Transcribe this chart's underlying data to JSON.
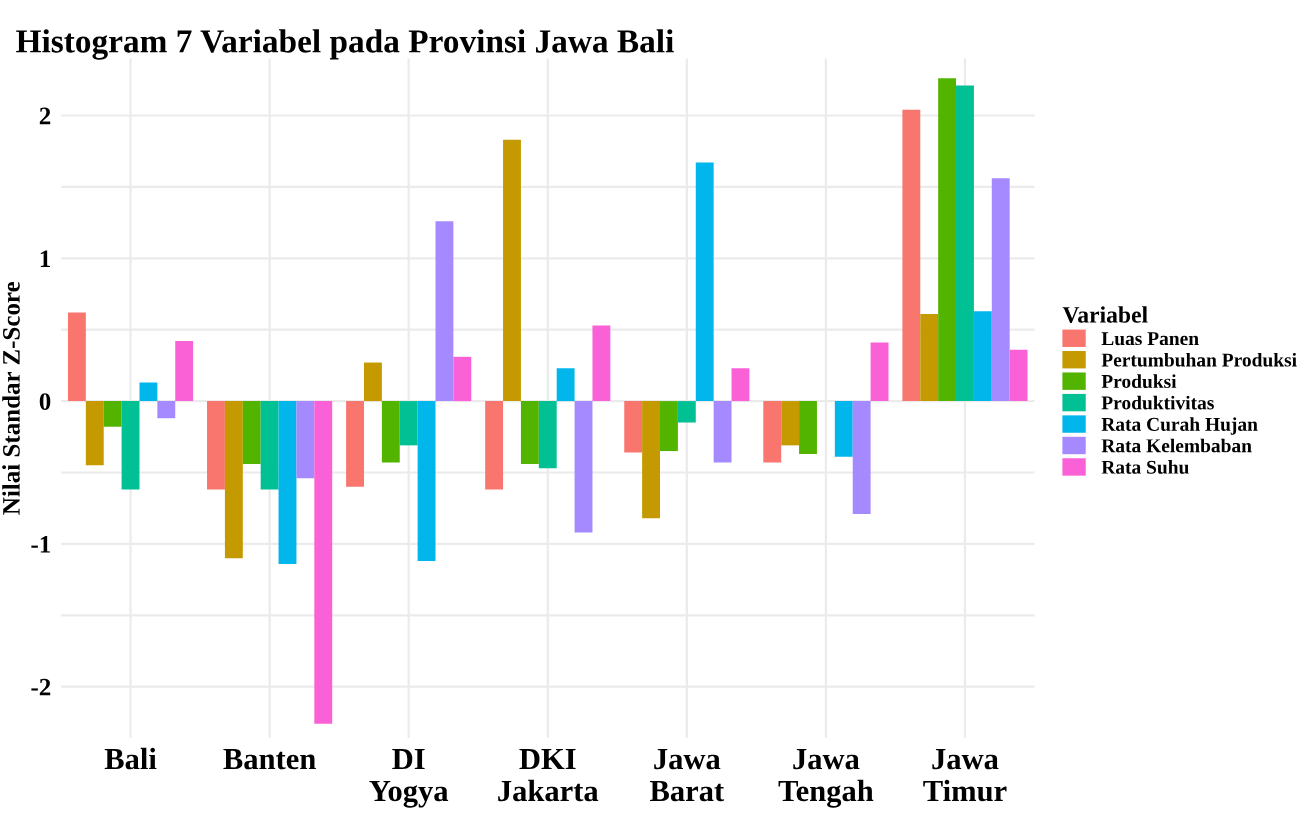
{
  "chart_data": {
    "type": "bar",
    "title": "Histogram 7 Variabel pada Provinsi Jawa Bali",
    "ylabel": "Nilai Standar Z-Score",
    "legend_title": "Variabel",
    "categories": [
      "Bali",
      "Banten",
      "DI\nYogya",
      "DKI\nJakarta",
      "Jawa\nBarat",
      "Jawa\nTengah",
      "Jawa\nTimur"
    ],
    "series": [
      {
        "name": "Luas Panen",
        "color": "#f8766d",
        "values": [
          0.62,
          -0.62,
          -0.6,
          -0.62,
          -0.36,
          -0.43,
          2.04
        ]
      },
      {
        "name": "Pertumbuhan Produksi",
        "color": "#c49a00",
        "values": [
          -0.45,
          -1.1,
          0.27,
          1.83,
          -0.82,
          -0.31,
          0.61
        ]
      },
      {
        "name": "Produksi",
        "color": "#53b400",
        "values": [
          -0.18,
          -0.44,
          -0.43,
          -0.44,
          -0.35,
          -0.37,
          2.26
        ]
      },
      {
        "name": "Produktivitas",
        "color": "#00c094",
        "values": [
          -0.62,
          -0.62,
          -0.31,
          -0.47,
          -0.15,
          0.0,
          2.21
        ]
      },
      {
        "name": "Rata Curah Hujan",
        "color": "#00b6eb",
        "values": [
          0.13,
          -1.14,
          -1.12,
          0.23,
          1.67,
          -0.39,
          0.63
        ]
      },
      {
        "name": "Rata Kelembaban",
        "color": "#a58aff",
        "values": [
          -0.12,
          -0.54,
          1.26,
          -0.92,
          -0.43,
          -0.79,
          1.56
        ]
      },
      {
        "name": "Rata Suhu",
        "color": "#fb61d7",
        "values": [
          0.42,
          -2.26,
          0.31,
          0.53,
          0.23,
          0.41,
          0.36
        ]
      }
    ],
    "ylim": [
      -2.36,
      2.4
    ],
    "yticks": [
      -2,
      {
        "value": -1.5,
        "label": null
      },
      -1,
      {
        "value": -0.5,
        "label": null
      },
      0,
      {
        "value": 0.5,
        "label": null
      },
      1,
      {
        "value": 1.5,
        "label": null
      },
      2
    ],
    "grid": true,
    "legend": "right"
  }
}
